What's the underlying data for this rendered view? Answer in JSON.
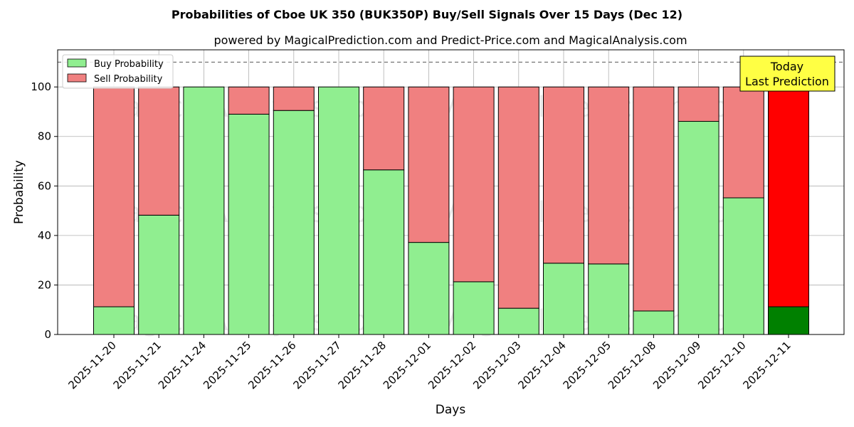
{
  "chart_data": {
    "type": "bar",
    "stacked": true,
    "title": "Probabilities of Cboe UK 350 (BUK350P) Buy/Sell Signals Over 15 Days (Dec 12)",
    "subtitle": "powered by MagicalPrediction.com and Predict-Price.com and MagicalAnalysis.com",
    "xlabel": "Days",
    "ylabel": "Probability",
    "ylim": [
      0,
      115
    ],
    "yticks": [
      "0",
      "20",
      "40",
      "60",
      "80",
      "100"
    ],
    "grid": true,
    "legend_position": "top-left",
    "reference_line": 110,
    "categories": [
      "2025-11-20",
      "2025-11-21",
      "2025-11-24",
      "2025-11-25",
      "2025-11-26",
      "2025-11-27",
      "2025-11-28",
      "2025-12-01",
      "2025-12-02",
      "2025-12-03",
      "2025-12-04",
      "2025-12-05",
      "2025-12-08",
      "2025-12-09",
      "2025-12-10",
      "2025-12-11"
    ],
    "series": [
      {
        "name": "Buy Probability",
        "color": "#90ee90",
        "values": [
          11.2,
          48.2,
          100,
          89,
          90.5,
          100,
          66.5,
          37.2,
          21.3,
          10.6,
          28.8,
          28.5,
          9.5,
          86.1,
          55.2,
          11.2
        ]
      },
      {
        "name": "Sell Probability",
        "color": "#f08080",
        "values": [
          88.8,
          51.8,
          0,
          11,
          9.5,
          0,
          33.5,
          62.8,
          78.7,
          89.4,
          71.2,
          71.5,
          90.5,
          13.9,
          44.8,
          88.8
        ]
      }
    ],
    "highlight": {
      "index": 15,
      "buy_color": "#008000",
      "sell_color": "#ff0000"
    },
    "annotation": {
      "lines": [
        "Today",
        "Last Prediction"
      ],
      "background": "#ffff44"
    },
    "watermarks": [
      "MagicalAnalysis.com",
      "MagicalPrediction.com"
    ]
  }
}
